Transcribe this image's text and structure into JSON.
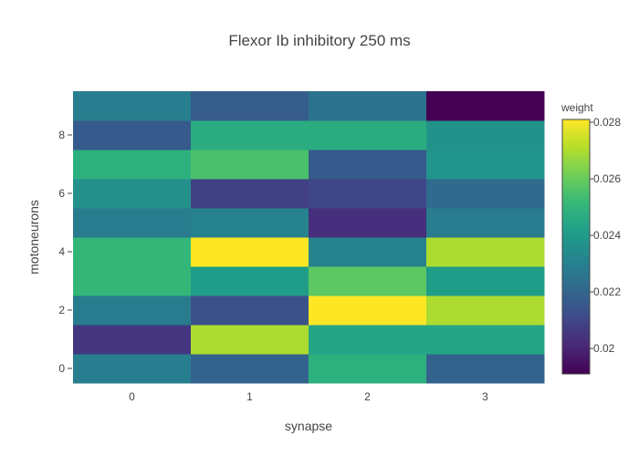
{
  "chart_data": {
    "type": "heatmap",
    "title": "Flexor Ib inhibitory 250 ms",
    "xlabel": "synapse",
    "ylabel": "motoneurons",
    "x_categories": [
      0,
      1,
      2,
      3
    ],
    "x_tick_labels": [
      "0",
      "1",
      "2",
      "3"
    ],
    "y_categories": [
      0,
      1,
      2,
      3,
      4,
      5,
      6,
      7,
      8,
      9
    ],
    "y_tick_labels": [
      "0",
      "2",
      "4",
      "6",
      "8"
    ],
    "y_tick_values": [
      0,
      2,
      4,
      6,
      8
    ],
    "z": [
      [
        0.0229,
        0.0219,
        0.0248,
        0.0219
      ],
      [
        0.0205,
        0.027,
        0.0244,
        0.0244
      ],
      [
        0.0228,
        0.0213,
        0.0281,
        0.027
      ],
      [
        0.0251,
        0.0241,
        0.0258,
        0.0241
      ],
      [
        0.0251,
        0.0281,
        0.0231,
        0.027
      ],
      [
        0.0228,
        0.0231,
        0.0203,
        0.0228
      ],
      [
        0.0236,
        0.0208,
        0.021,
        0.0222
      ],
      [
        0.0248,
        0.0255,
        0.0216,
        0.0238
      ],
      [
        0.0216,
        0.0247,
        0.0247,
        0.0237
      ],
      [
        0.0229,
        0.0217,
        0.0225,
        0.0191
      ]
    ],
    "colorscale": "viridis",
    "zmin": 0.0191,
    "zmax": 0.0281,
    "colorbar": {
      "title": "weight",
      "tick_values": [
        0.02,
        0.022,
        0.024,
        0.026,
        0.028
      ],
      "tick_labels": [
        "0.02",
        "0.022",
        "0.024",
        "0.026",
        "0.028"
      ]
    },
    "grid": false
  }
}
